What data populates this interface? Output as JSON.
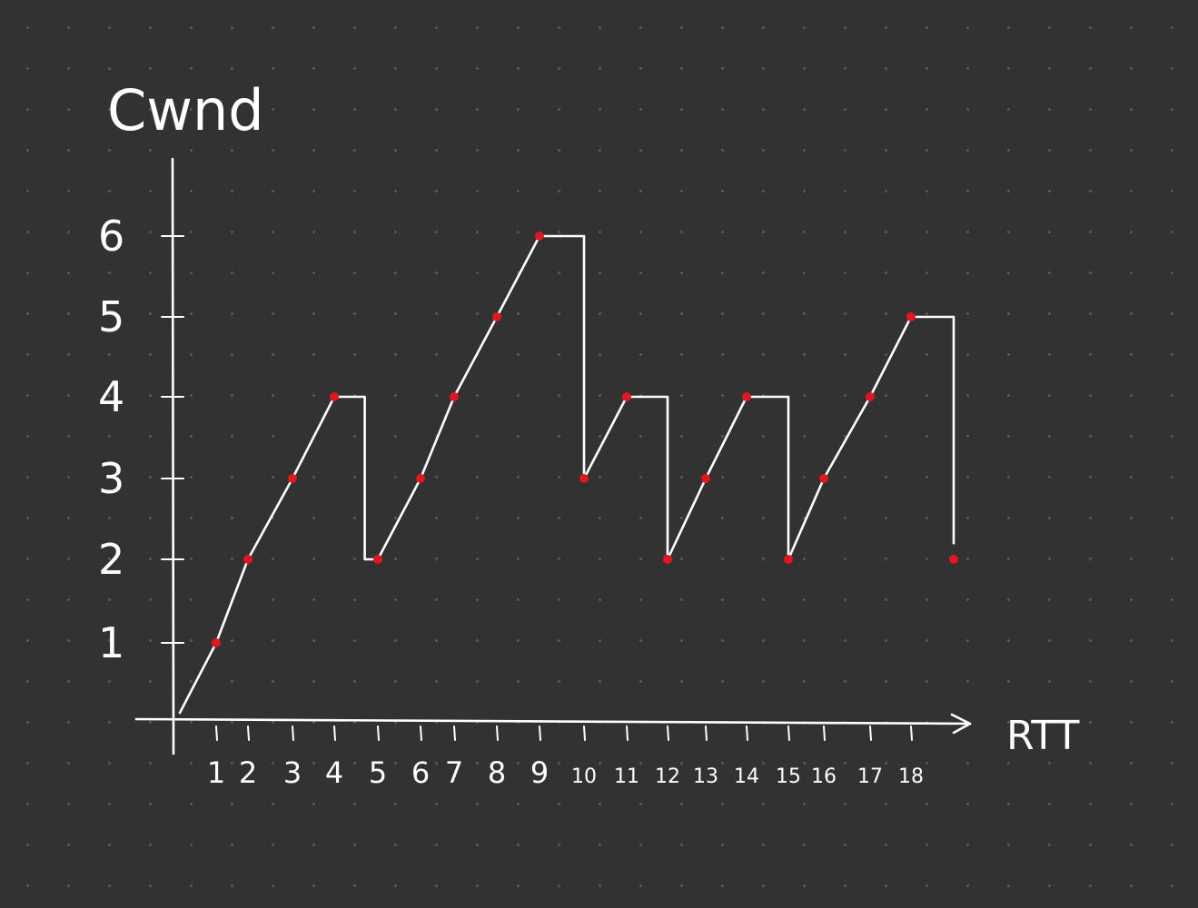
{
  "chart_data": {
    "type": "line",
    "title": "",
    "ylabel": "Cwnd",
    "xlabel": "RTT",
    "x_ticks": [
      "1",
      "2",
      "3",
      "4",
      "5",
      "6",
      "7",
      "8",
      "9",
      "10",
      "11",
      "12",
      "13",
      "14",
      "15",
      "16",
      "17",
      "18"
    ],
    "y_ticks": [
      "1",
      "2",
      "3",
      "4",
      "5",
      "6"
    ],
    "xlim": [
      0,
      19
    ],
    "ylim": [
      0,
      6.5
    ],
    "grid": false,
    "series": [
      {
        "line_points": [
          [
            0,
            0
          ],
          [
            1,
            1
          ],
          [
            2,
            2
          ],
          [
            3,
            3
          ],
          [
            4,
            4
          ],
          [
            4.7,
            4
          ],
          [
            4.7,
            2
          ],
          [
            5,
            2
          ],
          [
            6,
            3
          ],
          [
            7,
            4
          ],
          [
            8,
            5
          ],
          [
            9,
            6
          ],
          [
            10,
            6
          ],
          [
            10,
            3
          ],
          [
            11,
            4
          ],
          [
            12,
            4
          ],
          [
            12,
            2
          ],
          [
            12,
            2
          ],
          [
            13,
            3
          ],
          [
            14,
            4
          ],
          [
            15,
            4
          ],
          [
            15,
            2
          ],
          [
            15,
            2
          ],
          [
            16,
            3
          ],
          [
            17,
            4
          ],
          [
            18,
            5
          ],
          [
            19,
            5
          ],
          [
            19,
            2.2
          ]
        ],
        "markers": [
          [
            1,
            1
          ],
          [
            2,
            2
          ],
          [
            3,
            3
          ],
          [
            4,
            4
          ],
          [
            5,
            2
          ],
          [
            6,
            3
          ],
          [
            7,
            4
          ],
          [
            8,
            5
          ],
          [
            9,
            6
          ],
          [
            10,
            3
          ],
          [
            11,
            4
          ],
          [
            12,
            2
          ],
          [
            13,
            3
          ],
          [
            14,
            4
          ],
          [
            15,
            2
          ],
          [
            16,
            3
          ],
          [
            17,
            4
          ],
          [
            18,
            5
          ],
          [
            19,
            2
          ]
        ]
      }
    ]
  }
}
